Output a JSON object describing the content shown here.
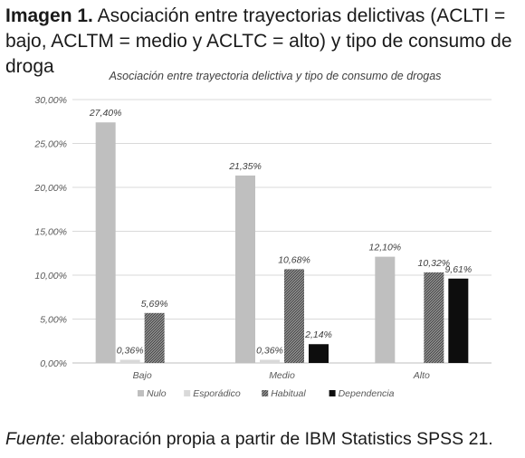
{
  "figure": {
    "label": "Imagen 1.",
    "caption": "Asociación entre trayectorias delictivas (ACLTI = bajo, ACLTM = medio y ACLTC = alto) y tipo de consumo de droga"
  },
  "source_note": {
    "label": "Fuente:",
    "text": "elaboración propia a partir de IBM Statistics SPSS 21."
  },
  "chart_data": {
    "type": "bar",
    "title": "Asociación entre trayectoria delictiva y tipo de consumo de drogas",
    "xlabel": "",
    "ylabel": "",
    "categories": [
      "Bajo",
      "Medio",
      "Alto"
    ],
    "series": [
      {
        "name": "Nulo",
        "values": [
          27.4,
          21.35,
          12.1
        ],
        "labels": [
          "27,40%",
          "21,35%",
          "12,10%"
        ],
        "color": "#bfbfbf",
        "fill": "solid"
      },
      {
        "name": "Esporádico",
        "values": [
          0.36,
          0.36,
          null
        ],
        "labels": [
          "0,36%",
          "0,36%",
          ""
        ],
        "color": "#d9d9d9",
        "fill": "solid"
      },
      {
        "name": "Habitual",
        "values": [
          5.69,
          10.68,
          10.32
        ],
        "labels": [
          "5,69%",
          "10,68%",
          "10,32%"
        ],
        "color": "#7f7f7f",
        "fill": "hatch"
      },
      {
        "name": "Dependencia",
        "values": [
          null,
          2.14,
          9.61
        ],
        "labels": [
          "",
          "2,14%",
          "9,61%"
        ],
        "color": "#0d0d0d",
        "fill": "solid"
      }
    ],
    "ylim": [
      0,
      30
    ],
    "yticks": [
      0,
      5,
      10,
      15,
      20,
      25,
      30
    ],
    "ytick_labels": [
      "0,00%",
      "5,00%",
      "10,00%",
      "15,00%",
      "20,00%",
      "25,00%",
      "30,00%"
    ],
    "grid": true,
    "legend_position": "bottom"
  }
}
